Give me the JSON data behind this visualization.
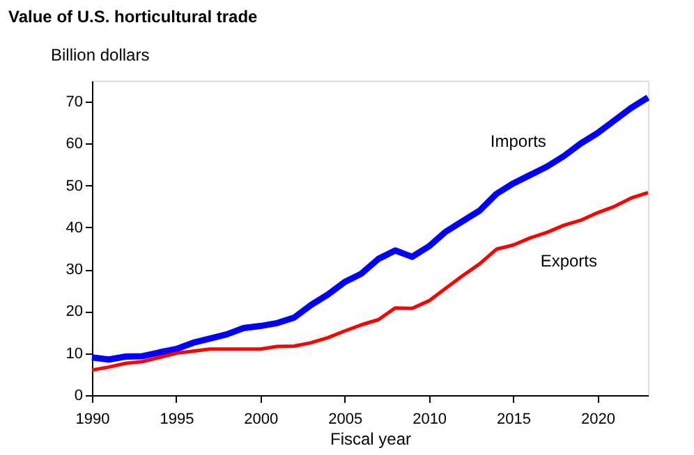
{
  "chart_data": {
    "type": "line",
    "title": "Value of U.S. horticultural trade",
    "ylabel": "Billion dollars",
    "xlabel": "Fiscal year",
    "x": [
      1990,
      1991,
      1992,
      1993,
      1994,
      1995,
      1996,
      1997,
      1998,
      1999,
      2000,
      2001,
      2002,
      2003,
      2004,
      2005,
      2006,
      2007,
      2008,
      2009,
      2010,
      2011,
      2012,
      2013,
      2014,
      2015,
      2016,
      2017,
      2018,
      2019,
      2020,
      2021,
      2022,
      2023
    ],
    "series": [
      {
        "name": "Imports",
        "color": "#0000ff",
        "values": [
          9,
          8.5,
          9.2,
          9.3,
          10.2,
          11,
          12.5,
          13.5,
          14.5,
          16,
          16.5,
          17.2,
          18.5,
          21.5,
          24,
          27,
          29,
          32.5,
          34.5,
          33,
          35.5,
          39,
          41.5,
          44,
          48,
          50.5,
          52.5,
          54.5,
          57,
          60,
          62.5,
          65.5,
          68.5,
          71
        ]
      },
      {
        "name": "Exports",
        "color": "#ff0000",
        "values": [
          6,
          6.7,
          7.6,
          8,
          9,
          10,
          10.5,
          11,
          11,
          11,
          11,
          11.6,
          11.7,
          12.5,
          13.7,
          15.3,
          16.8,
          18,
          20.8,
          20.7,
          22.5,
          25.5,
          28.5,
          31.3,
          34.8,
          35.8,
          37.5,
          38.8,
          40.5,
          41.7,
          43.5,
          45,
          47,
          48.3
        ]
      }
    ],
    "xlim": [
      1990,
      2023
    ],
    "xticks": [
      1990,
      1995,
      2000,
      2005,
      2010,
      2015,
      2020
    ],
    "ylim": [
      0,
      75
    ],
    "yticks": [
      0,
      10,
      20,
      30,
      40,
      50,
      60,
      70
    ],
    "grid": false,
    "legend": false,
    "marker": "none",
    "line_style": "solid"
  }
}
